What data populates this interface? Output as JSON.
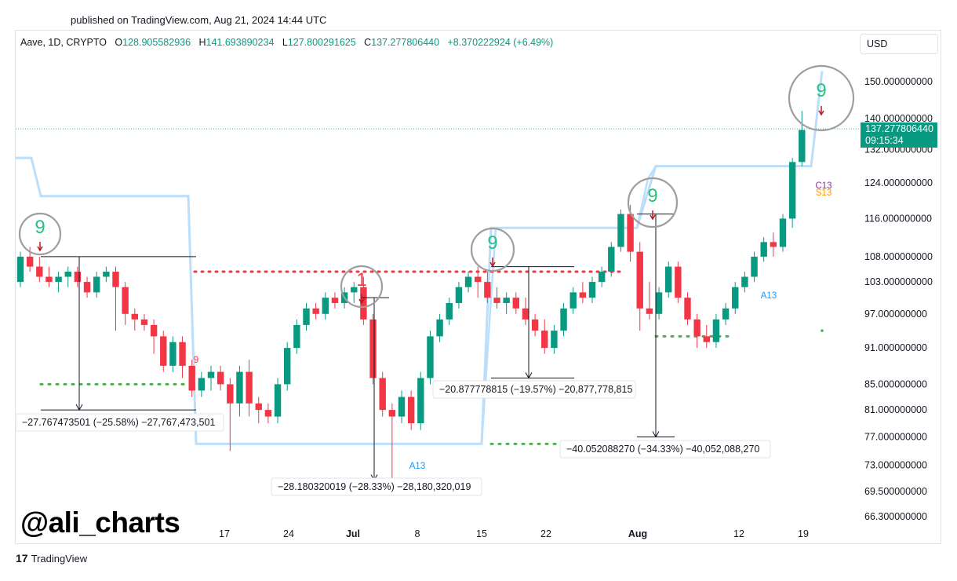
{
  "header": {
    "published": "published on TradingView.com, Aug 21, 2024 14:44 UTC"
  },
  "legend": {
    "symbol": "Aave, 1D, CRYPTO",
    "o_label": "O",
    "o": "128.905582936",
    "h_label": "H",
    "h": "141.693890234",
    "l_label": "L",
    "l": "127.800291625",
    "c_label": "C",
    "c": "137.277806440",
    "change": "+8.370222924 (+6.49%)"
  },
  "currency": "USD",
  "price_tag": {
    "price": "137.277806440",
    "countdown": "09:15:34"
  },
  "watermark": "@ali_charts",
  "branding": {
    "logo": "17",
    "name": "TradingView"
  },
  "colors": {
    "up": "#089981",
    "down": "#f23645",
    "support": "#4caf50",
    "resistance": "#f23645",
    "band": "#bbdefb",
    "circle": "#9e9e9e"
  },
  "chart_data": {
    "type": "candlestick",
    "title": "Aave, 1D, CRYPTO",
    "y_scale": "log",
    "y_ticks": [
      "150.000000000",
      "140.000000000",
      "132.000000000",
      "124.000000000",
      "116.000000000",
      "108.000000000",
      "103.000000000",
      "97.000000000",
      "91.000000000",
      "85.000000000",
      "81.000000000",
      "77.000000000",
      "73.000000000",
      "69.500000000",
      "66.300000000"
    ],
    "x_ticks": [
      "17",
      "24",
      "Jul",
      "8",
      "15",
      "22",
      "Aug",
      "12",
      "19"
    ],
    "x_ticks_bold": [
      "Jul",
      "Aug"
    ],
    "candles": [
      [
        103,
        109,
        102,
        108
      ],
      [
        108,
        110,
        105,
        106
      ],
      [
        106,
        108,
        103,
        104
      ],
      [
        104,
        106,
        102,
        103
      ],
      [
        103,
        105,
        101,
        104
      ],
      [
        104,
        106,
        102,
        105
      ],
      [
        105,
        106,
        102,
        103
      ],
      [
        103,
        104,
        100,
        101
      ],
      [
        101,
        105,
        100,
        104
      ],
      [
        104,
        106,
        103,
        105
      ],
      [
        105,
        106,
        94,
        102
      ],
      [
        102,
        103,
        95,
        97
      ],
      [
        97,
        98,
        94,
        96
      ],
      [
        96,
        97,
        94,
        95
      ],
      [
        95,
        96,
        90,
        93
      ],
      [
        93,
        94,
        87,
        88
      ],
      [
        88,
        93,
        87,
        92
      ],
      [
        92,
        93,
        86,
        88
      ],
      [
        88,
        89,
        83,
        84
      ],
      [
        84,
        87,
        83,
        86
      ],
      [
        86,
        88,
        84,
        87
      ],
      [
        87,
        88,
        84,
        85
      ],
      [
        85,
        86,
        75,
        82
      ],
      [
        82,
        88,
        80,
        87
      ],
      [
        87,
        89,
        80,
        82
      ],
      [
        82,
        83,
        79,
        81
      ],
      [
        81,
        82,
        79,
        80
      ],
      [
        80,
        86,
        79,
        85
      ],
      [
        85,
        92,
        84,
        91
      ],
      [
        91,
        96,
        90,
        95
      ],
      [
        95,
        99,
        94,
        98
      ],
      [
        98,
        99,
        96,
        97
      ],
      [
        97,
        101,
        96,
        100
      ],
      [
        100,
        101,
        98,
        99
      ],
      [
        99,
        102,
        98,
        101
      ],
      [
        101,
        103,
        99,
        102
      ],
      [
        102,
        104,
        95,
        96
      ],
      [
        96,
        97,
        85,
        86
      ],
      [
        86,
        87,
        80,
        81
      ],
      [
        81,
        82,
        71,
        80
      ],
      [
        80,
        84,
        79,
        83
      ],
      [
        83,
        84,
        78,
        79
      ],
      [
        79,
        87,
        78,
        86
      ],
      [
        86,
        94,
        85,
        93
      ],
      [
        93,
        97,
        92,
        96
      ],
      [
        96,
        100,
        95,
        99
      ],
      [
        99,
        103,
        98,
        102
      ],
      [
        102,
        105,
        101,
        104
      ],
      [
        104,
        106,
        100,
        103
      ],
      [
        103,
        105,
        99,
        100
      ],
      [
        100,
        102,
        98,
        99
      ],
      [
        99,
        101,
        97,
        100
      ],
      [
        100,
        101,
        97,
        98
      ],
      [
        98,
        100,
        95,
        96
      ],
      [
        96,
        97,
        93,
        94
      ],
      [
        94,
        96,
        90,
        91
      ],
      [
        91,
        95,
        90,
        94
      ],
      [
        94,
        99,
        93,
        98
      ],
      [
        98,
        102,
        97,
        101
      ],
      [
        101,
        103,
        99,
        100
      ],
      [
        100,
        104,
        99,
        103
      ],
      [
        103,
        106,
        102,
        105
      ],
      [
        105,
        111,
        104,
        110
      ],
      [
        110,
        118,
        109,
        117
      ],
      [
        117,
        119,
        107,
        109
      ],
      [
        109,
        111,
        94,
        98
      ],
      [
        98,
        103,
        96,
        97
      ],
      [
        97,
        102,
        96,
        101
      ],
      [
        101,
        107,
        100,
        106
      ],
      [
        106,
        107,
        99,
        100
      ],
      [
        100,
        101,
        95,
        96
      ],
      [
        96,
        97,
        91,
        93
      ],
      [
        93,
        95,
        91,
        92
      ],
      [
        92,
        97,
        91,
        96
      ],
      [
        96,
        99,
        95,
        98
      ],
      [
        98,
        103,
        97,
        102
      ],
      [
        102,
        105,
        101,
        104
      ],
      [
        104,
        109,
        103,
        108
      ],
      [
        108,
        112,
        107,
        111
      ],
      [
        111,
        113,
        108,
        110
      ],
      [
        110,
        117,
        109,
        116
      ],
      [
        116,
        130,
        114,
        129
      ],
      [
        129,
        142,
        128,
        137
      ]
    ],
    "series": [
      {
        "name": "Supertrend band",
        "values": []
      },
      {
        "name": "TD Sequential",
        "values": []
      }
    ],
    "annotations": {
      "td_counts": [
        {
          "label": "9",
          "candle": 2,
          "color": "#089981"
        },
        {
          "label": "1",
          "candle": 36,
          "color": "#f23645"
        },
        {
          "label": "9",
          "candle": 48,
          "color": "#089981"
        },
        {
          "label": "9",
          "candle": 65,
          "color": "#089981"
        },
        {
          "label": "9",
          "candle": 82,
          "color": "#089981"
        }
      ],
      "small_labels": [
        {
          "label": "9",
          "candle": 19,
          "color": "#f23645"
        },
        {
          "label": "A13",
          "candle": 42,
          "color": "#2196f3"
        },
        {
          "label": "A13",
          "candle": 78,
          "color": "#2196f3"
        },
        {
          "label": "C13",
          "candle": 82,
          "color": "#9c27b0"
        },
        {
          "label": "S13",
          "candle": 82,
          "color": "#ff9800"
        }
      ],
      "measures": [
        {
          "text": "−27.767473501 (−25.58%) −27,767,473,501",
          "from": 108,
          "to": 81
        },
        {
          "text": "−28.180320019 (−28.33%) −28,180,320,019",
          "from": 100,
          "to": 71
        },
        {
          "text": "−20.877778815 (−19.57%) −20,877,778,815",
          "from": 106,
          "to": 86
        },
        {
          "text": "−40.052088270 (−34.33%) −40,052,088,270",
          "from": 117,
          "to": 77
        }
      ],
      "resistance": 105,
      "supports": [
        85,
        76,
        93
      ]
    }
  }
}
